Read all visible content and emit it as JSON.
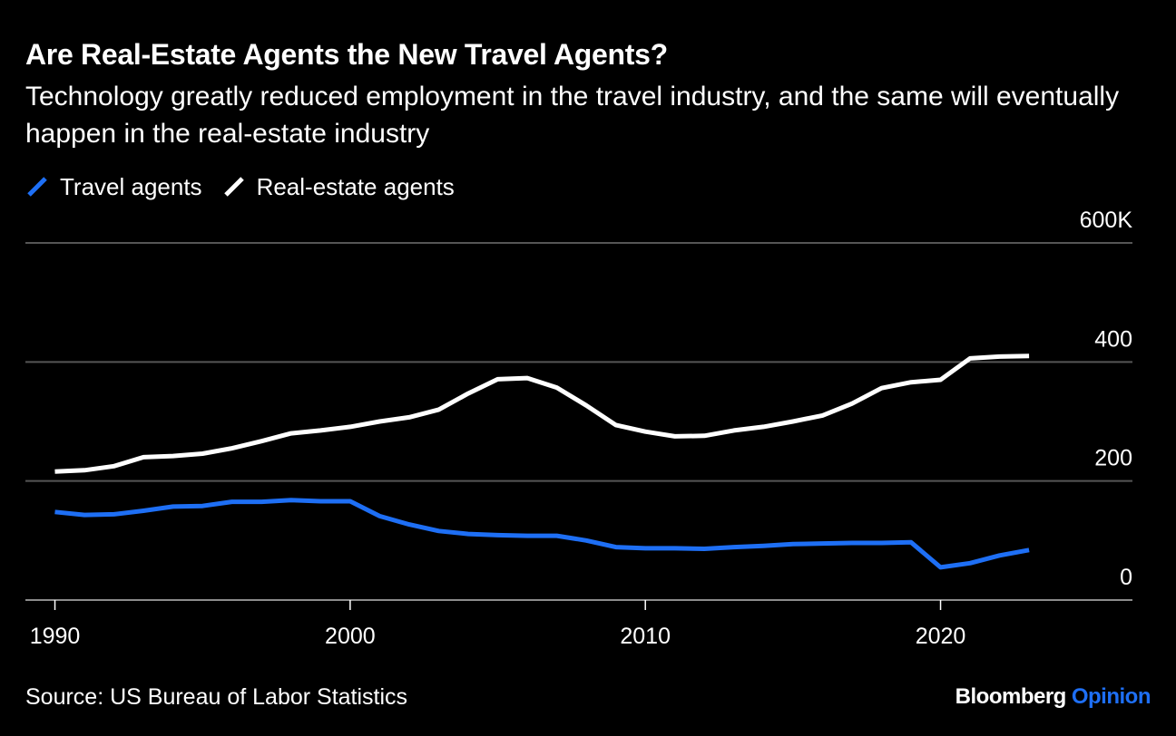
{
  "header": {
    "title": "Are Real-Estate Agents the New Travel Agents?",
    "subtitle": "Technology greatly reduced employment in the travel industry, and the same will eventually happen in the real-estate industry"
  },
  "footer": {
    "source": "Source: US Bureau of Labor Statistics",
    "brand_primary": "Bloomberg",
    "brand_secondary": "Opinion"
  },
  "colors": {
    "background": "#000000",
    "travel": "#1e6ff5",
    "real_estate": "#ffffff",
    "grid": "#555555"
  },
  "chart_data": {
    "type": "line",
    "x": [
      1990,
      1991,
      1992,
      1993,
      1994,
      1995,
      1996,
      1997,
      1998,
      1999,
      2000,
      2001,
      2002,
      2003,
      2004,
      2005,
      2006,
      2007,
      2008,
      2009,
      2010,
      2011,
      2012,
      2013,
      2014,
      2015,
      2016,
      2017,
      2018,
      2019,
      2020,
      2021,
      2022,
      2023
    ],
    "series": [
      {
        "name": "Travel agents",
        "color": "#1e6ff5",
        "values": [
          148,
          143,
          144,
          150,
          157,
          158,
          165,
          165,
          168,
          166,
          166,
          141,
          127,
          116,
          111,
          109,
          108,
          108,
          100,
          89,
          87,
          87,
          86,
          89,
          91,
          94,
          95,
          96,
          96,
          97,
          55,
          62,
          75,
          84
        ]
      },
      {
        "name": "Real-estate agents",
        "color": "#ffffff",
        "values": [
          216,
          218,
          225,
          240,
          242,
          246,
          255,
          267,
          280,
          285,
          291,
          300,
          307,
          320,
          347,
          371,
          373,
          357,
          327,
          294,
          283,
          275,
          276,
          285,
          291,
          300,
          310,
          330,
          356,
          366,
          370,
          406,
          409,
          410
        ]
      }
    ],
    "y_ticks": [
      0,
      200,
      400,
      600
    ],
    "y_tick_labels": [
      "0",
      "200",
      "400",
      "600K"
    ],
    "x_ticks": [
      1990,
      2000,
      2010,
      2020
    ],
    "x_tick_labels": [
      "1990",
      "2000",
      "2010",
      "2020"
    ],
    "ylim": [
      0,
      600
    ],
    "xlim": [
      1989,
      2026.5
    ],
    "grid": true,
    "legend_position": "top-left"
  }
}
